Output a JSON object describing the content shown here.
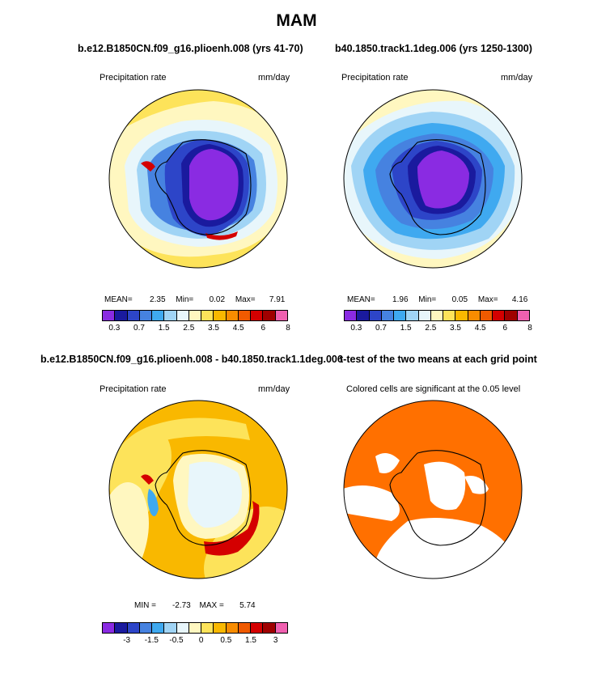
{
  "title": "MAM",
  "panels": [
    {
      "title": "b.e12.B1850CN.f09_g16.plioenh.008 (yrs 41-70)",
      "left_label": "Precipitation rate",
      "right_label": "mm/day",
      "stats": {
        "mean_label": "MEAN=",
        "mean": "2.35",
        "min_label": "Min=",
        "min": "0.02",
        "max_label": "Max=",
        "max": "7.91"
      },
      "colorbar": {
        "colors": [
          "#8a2be2",
          "#1a1a9e",
          "#2d45c8",
          "#4682e0",
          "#3fa9f0",
          "#a0d4f5",
          "#e8f6fb",
          "#fff7c0",
          "#fde35a",
          "#f9b800",
          "#f88c00",
          "#f05a00",
          "#d40000",
          "#a00000",
          "#f060b0"
        ],
        "ticks": [
          "0.3",
          "0.7",
          "1.5",
          "2.5",
          "3.5",
          "4.5",
          "6",
          "8"
        ]
      }
    },
    {
      "title": "b40.1850.track1.1deg.006 (yrs 1250-1300)",
      "left_label": "Precipitation rate",
      "right_label": "mm/day",
      "stats": {
        "mean_label": "MEAN=",
        "mean": "1.96",
        "min_label": "Min=",
        "min": "0.05",
        "max_label": "Max=",
        "max": "4.16"
      },
      "colorbar": {
        "colors": [
          "#8a2be2",
          "#1a1a9e",
          "#2d45c8",
          "#4682e0",
          "#3fa9f0",
          "#a0d4f5",
          "#e8f6fb",
          "#fff7c0",
          "#fde35a",
          "#f9b800",
          "#f88c00",
          "#f05a00",
          "#d40000",
          "#a00000",
          "#f060b0"
        ],
        "ticks": [
          "0.3",
          "0.7",
          "1.5",
          "2.5",
          "3.5",
          "4.5",
          "6",
          "8"
        ]
      }
    },
    {
      "title": "b.e12.B1850CN.f09_g16.plioenh.008 - b40.1850.track1.1deg.006",
      "left_label": "Precipitation rate",
      "right_label": "mm/day",
      "stats": {
        "min_label": "MIN =",
        "min": "-2.73",
        "max_label": "MAX =",
        "max": "5.74"
      },
      "colorbar": {
        "colors": [
          "#8a2be2",
          "#1a1a9e",
          "#2d45c8",
          "#4682e0",
          "#3fa9f0",
          "#a0d4f5",
          "#e8f6fb",
          "#fff7c0",
          "#fde35a",
          "#f9b800",
          "#f88c00",
          "#f05a00",
          "#d40000",
          "#a00000",
          "#f060b0"
        ],
        "ticks": [
          "-3",
          "-1.5",
          "-0.5",
          "0",
          "0.5",
          "1.5",
          "3"
        ]
      }
    },
    {
      "title": "t-test of the two means at each grid point",
      "left_label": "Colored cells are significant at the 0.05 level"
    }
  ],
  "colors": {
    "ocean_light": "#fff7c0",
    "ice_purple": "#8a2be2",
    "significant": "#ff7000"
  }
}
